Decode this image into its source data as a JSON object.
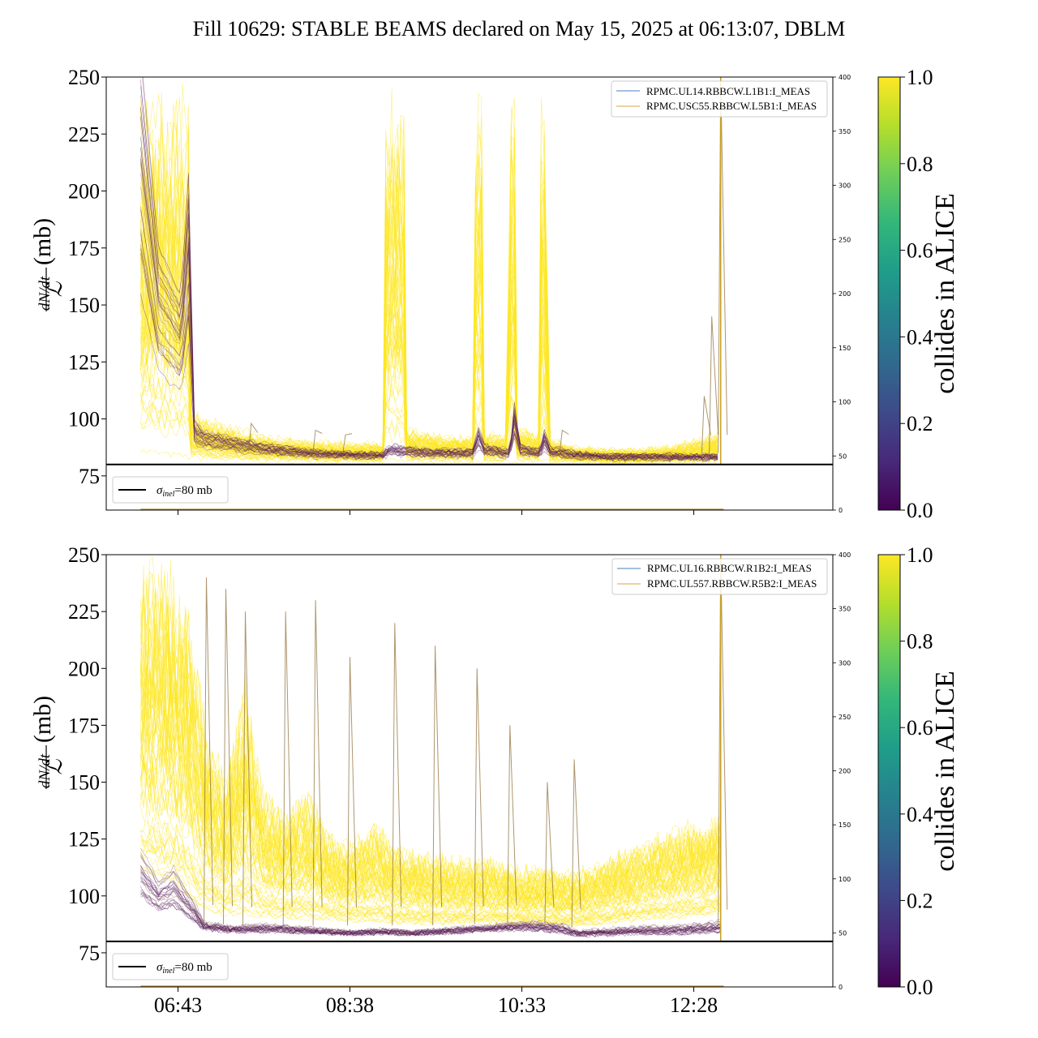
{
  "title": "Fill 10629: STABLE BEAMS declared on May 15, 2025 at 06:13:07, DBLM",
  "colors": {
    "viridis": [
      "#440154",
      "#482878",
      "#3e4989",
      "#31688e",
      "#26828e",
      "#1f9e89",
      "#35b779",
      "#6ece58",
      "#b5de2b",
      "#fde725"
    ],
    "collide": "#fde725",
    "noncollide": "#440154",
    "blm_trace_1": "#4a7fbf",
    "blm_trace_2": "#d9a441",
    "reference": "#000000"
  },
  "chart_data": [
    {
      "type": "line",
      "panel": "top",
      "ylabel_numerator": "dN/dt",
      "ylabel_denominator": "ℒ",
      "ylabel_unit": "(mb)",
      "ylim": [
        60,
        250
      ],
      "y_ticks": [
        "75",
        "100",
        "125",
        "150",
        "175",
        "200",
        "225",
        "250"
      ],
      "x_ticks": [
        "06:43",
        "08:38",
        "10:33",
        "12:28"
      ],
      "secondary_y_ticks": [
        "0",
        "50",
        "100",
        "150",
        "200",
        "250",
        "300",
        "350",
        "400"
      ],
      "secondary_ylim": [
        0,
        400
      ],
      "legend": [
        "RPMC.UL14.RBBCW.L1B1:I_MEAS",
        "RPMC.USC55.RBBCW.L5B1:I_MEAS"
      ],
      "reference_legend": "=80 mb",
      "reference_y": 80,
      "colorbar": {
        "label": "collides in ALICE",
        "ticks": [
          "0.0",
          "0.2",
          "0.4",
          "0.6",
          "0.8",
          "1.0"
        ],
        "range": [
          0,
          1
        ]
      },
      "yellow_band_upper": [
        [
          "06:18",
          250
        ],
        [
          "06:38",
          250
        ],
        [
          "06:50",
          250
        ],
        [
          "06:52",
          105
        ],
        [
          "07:00",
          102
        ],
        [
          "07:20",
          97
        ],
        [
          "07:45",
          93
        ],
        [
          "08:10",
          91
        ],
        [
          "08:35",
          90
        ],
        [
          "09:00",
          90
        ],
        [
          "09:02",
          250
        ],
        [
          "09:14",
          250
        ],
        [
          "09:16",
          98
        ],
        [
          "09:40",
          94
        ],
        [
          "10:00",
          93
        ],
        [
          "10:02",
          250
        ],
        [
          "10:06",
          250
        ],
        [
          "10:08",
          95
        ],
        [
          "10:23",
          94
        ],
        [
          "10:25",
          250
        ],
        [
          "10:28",
          250
        ],
        [
          "10:30",
          98
        ],
        [
          "10:45",
          94
        ],
        [
          "10:46",
          250
        ],
        [
          "10:49",
          250
        ],
        [
          "10:51",
          92
        ],
        [
          "11:10",
          88
        ],
        [
          "11:30",
          87
        ],
        [
          "11:50",
          87
        ],
        [
          "12:10",
          88
        ],
        [
          "12:30",
          92
        ],
        [
          "12:45",
          96
        ],
        [
          "12:46",
          60
        ]
      ],
      "purple_band": [
        [
          "06:18",
          250
        ],
        [
          "06:30",
          170
        ],
        [
          "06:45",
          150
        ],
        [
          "06:50",
          200
        ],
        [
          "06:54",
          98
        ],
        [
          "07:00",
          94
        ],
        [
          "07:20",
          91
        ],
        [
          "07:45",
          88
        ],
        [
          "08:10",
          86
        ],
        [
          "08:35",
          85
        ],
        [
          "09:00",
          85
        ],
        [
          "09:05",
          88
        ],
        [
          "09:15",
          87
        ],
        [
          "09:40",
          86
        ],
        [
          "10:00",
          86
        ],
        [
          "10:04",
          95
        ],
        [
          "10:08",
          88
        ],
        [
          "10:25",
          86
        ],
        [
          "10:28",
          105
        ],
        [
          "10:32",
          88
        ],
        [
          "10:45",
          86
        ],
        [
          "10:48",
          94
        ],
        [
          "10:52",
          87
        ],
        [
          "11:10",
          85
        ],
        [
          "11:30",
          84
        ],
        [
          "11:50",
          84
        ],
        [
          "12:10",
          84
        ],
        [
          "12:30",
          84
        ],
        [
          "12:45",
          84
        ],
        [
          "12:46",
          60
        ]
      ],
      "band_floor": [
        [
          "06:18",
          86
        ],
        [
          "06:40",
          84
        ],
        [
          "06:55",
          83
        ],
        [
          "07:30",
          82
        ],
        [
          "08:30",
          81.5
        ],
        [
          "09:30",
          81.5
        ],
        [
          "10:30",
          81.5
        ],
        [
          "11:30",
          81
        ],
        [
          "12:30",
          81
        ],
        [
          "12:46",
          81
        ]
      ],
      "spikes": [
        [
          "07:32",
          98
        ],
        [
          "08:15",
          95
        ],
        [
          "08:35",
          93
        ],
        [
          "11:00",
          95
        ],
        [
          "12:35",
          110
        ],
        [
          "12:40",
          145
        ],
        [
          "12:46",
          250
        ]
      ]
    },
    {
      "type": "line",
      "panel": "bottom",
      "ylabel_numerator": "dN/dt",
      "ylabel_denominator": "ℒ",
      "ylabel_unit": "(mb)",
      "ylim": [
        60,
        250
      ],
      "y_ticks": [
        "75",
        "100",
        "125",
        "150",
        "175",
        "200",
        "225",
        "250"
      ],
      "x_ticks": [
        "06:43",
        "08:38",
        "10:33",
        "12:28"
      ],
      "secondary_y_ticks": [
        "0",
        "50",
        "100",
        "150",
        "200",
        "250",
        "300",
        "350",
        "400"
      ],
      "secondary_ylim": [
        0,
        400
      ],
      "legend": [
        "RPMC.UL16.RBBCW.R1B2:I_MEAS",
        "RPMC.UL557.RBBCW.R5B2:I_MEAS"
      ],
      "reference_legend": "=80 mb",
      "reference_y": 80,
      "colorbar": {
        "label": "collides in ALICE",
        "ticks": [
          "0.0",
          "0.2",
          "0.4",
          "0.6",
          "0.8",
          "1.0"
        ],
        "range": [
          0,
          1
        ]
      },
      "yellow_band_upper": [
        [
          "06:18",
          250
        ],
        [
          "06:40",
          250
        ],
        [
          "06:50",
          235
        ],
        [
          "06:58",
          200
        ],
        [
          "07:02",
          175
        ],
        [
          "07:15",
          155
        ],
        [
          "07:28",
          200
        ],
        [
          "07:40",
          150
        ],
        [
          "07:55",
          138
        ],
        [
          "08:10",
          150
        ],
        [
          "08:25",
          128
        ],
        [
          "08:38",
          125
        ],
        [
          "08:55",
          135
        ],
        [
          "09:10",
          123
        ],
        [
          "09:28",
          120
        ],
        [
          "09:45",
          118
        ],
        [
          "10:00",
          117
        ],
        [
          "10:15",
          118
        ],
        [
          "10:30",
          113
        ],
        [
          "10:45",
          114
        ],
        [
          "11:00",
          112
        ],
        [
          "11:10",
          112
        ],
        [
          "11:30",
          118
        ],
        [
          "11:50",
          125
        ],
        [
          "12:10",
          130
        ],
        [
          "12:30",
          135
        ],
        [
          "12:46",
          138
        ],
        [
          "12:47",
          60
        ]
      ],
      "yellow_band_lower": [
        [
          "06:18",
          110
        ],
        [
          "06:40",
          105
        ],
        [
          "06:55",
          95
        ],
        [
          "07:10",
          92
        ],
        [
          "07:30",
          91
        ],
        [
          "08:00",
          90
        ],
        [
          "08:38",
          89
        ],
        [
          "09:10",
          88
        ],
        [
          "09:40",
          88
        ],
        [
          "10:10",
          88
        ],
        [
          "10:40",
          88
        ],
        [
          "11:10",
          87
        ],
        [
          "11:30",
          88
        ],
        [
          "12:00",
          90
        ],
        [
          "12:30",
          91
        ],
        [
          "12:46",
          92
        ]
      ],
      "purple_band": [
        [
          "06:18",
          118
        ],
        [
          "06:30",
          105
        ],
        [
          "06:40",
          110
        ],
        [
          "06:55",
          95
        ],
        [
          "07:00",
          88
        ],
        [
          "07:20",
          86
        ],
        [
          "07:40",
          87
        ],
        [
          "08:00",
          86
        ],
        [
          "08:20",
          85
        ],
        [
          "08:40",
          84
        ],
        [
          "09:00",
          85
        ],
        [
          "09:20",
          84
        ],
        [
          "09:40",
          85
        ],
        [
          "10:00",
          86
        ],
        [
          "10:20",
          87
        ],
        [
          "10:40",
          88
        ],
        [
          "11:00",
          87
        ],
        [
          "11:10",
          84
        ],
        [
          "11:30",
          85
        ],
        [
          "11:50",
          86
        ],
        [
          "12:10",
          86
        ],
        [
          "12:30",
          87
        ],
        [
          "12:46",
          88
        ]
      ],
      "band_floor": [
        [
          "06:18",
          88
        ],
        [
          "06:40",
          86
        ],
        [
          "07:00",
          84
        ],
        [
          "07:30",
          83
        ],
        [
          "08:30",
          83
        ],
        [
          "09:30",
          83
        ],
        [
          "10:30",
          84
        ],
        [
          "11:10",
          82
        ],
        [
          "12:00",
          82
        ],
        [
          "12:46",
          82
        ]
      ],
      "spikes": [
        [
          "07:02",
          240
        ],
        [
          "07:15",
          235
        ],
        [
          "07:28",
          225
        ],
        [
          "07:55",
          225
        ],
        [
          "08:15",
          230
        ],
        [
          "08:38",
          205
        ],
        [
          "09:08",
          220
        ],
        [
          "09:35",
          210
        ],
        [
          "10:03",
          200
        ],
        [
          "10:25",
          175
        ],
        [
          "10:50",
          150
        ],
        [
          "11:08",
          160
        ],
        [
          "12:46",
          250
        ]
      ]
    }
  ]
}
